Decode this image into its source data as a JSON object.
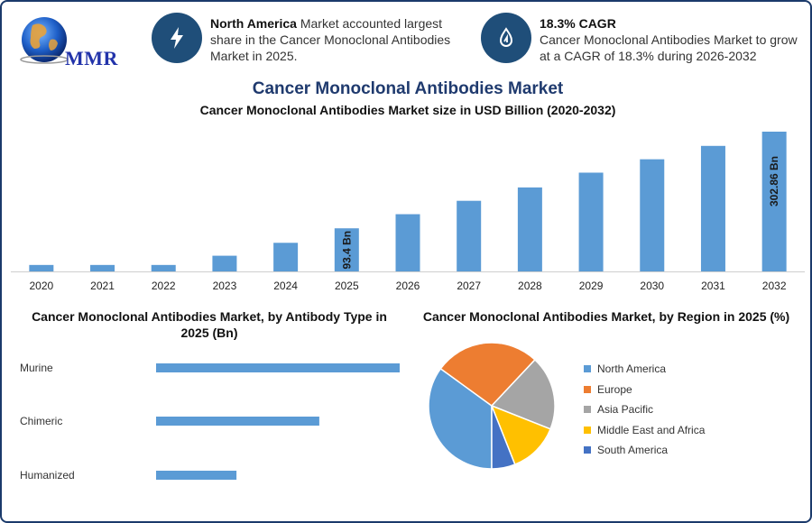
{
  "logo": {
    "text": "MMR"
  },
  "info1": {
    "bold": "North America",
    "text": " Market accounted largest share in the Cancer Monoclonal Antibodies Market in 2025."
  },
  "info2": {
    "bold": "18.3% CAGR",
    "text": "Cancer Monoclonal Antibodies Market to grow at a CAGR of 18.3% during 2026-2032"
  },
  "page": {
    "title": "Cancer Monoclonal Antibodies Market",
    "subtitle": "Cancer Monoclonal Antibodies Market size in USD Billion (2020-2032)"
  },
  "chart_data": [
    {
      "type": "bar",
      "title": "Cancer Monoclonal Antibodies Market size in USD Billion (2020-2032)",
      "categories": [
        "2020",
        "2021",
        "2022",
        "2023",
        "2024",
        "2025",
        "2026",
        "2027",
        "2028",
        "2029",
        "2030",
        "2031",
        "2032"
      ],
      "values": [
        14,
        14,
        14,
        34,
        62,
        93.4,
        124,
        153,
        182,
        214,
        243,
        272,
        302.86
      ],
      "data_labels": {
        "5": "93.4 Bn",
        "12": "302.86 Bn"
      },
      "ylim": [
        0,
        302.86
      ],
      "color": "#5b9bd5"
    },
    {
      "type": "bar",
      "orientation": "horizontal",
      "title": "Cancer Monoclonal Antibodies Market, by Antibody Type in 2025 (Bn)",
      "categories": [
        "Murine",
        "Chimeric",
        "Humanized"
      ],
      "values": [
        100,
        67,
        33
      ],
      "color": "#5b9bd5"
    },
    {
      "type": "pie",
      "title": "Cancer Monoclonal Antibodies Market, by Region in 2025 (%)",
      "categories": [
        "North America",
        "Europe",
        "Asia Pacific",
        "Middle East and Africa",
        "South America"
      ],
      "values": [
        35,
        27,
        19,
        13,
        6
      ],
      "colors": [
        "#5b9bd5",
        "#ed7d31",
        "#a5a5a5",
        "#ffc000",
        "#4472c4"
      ]
    }
  ]
}
